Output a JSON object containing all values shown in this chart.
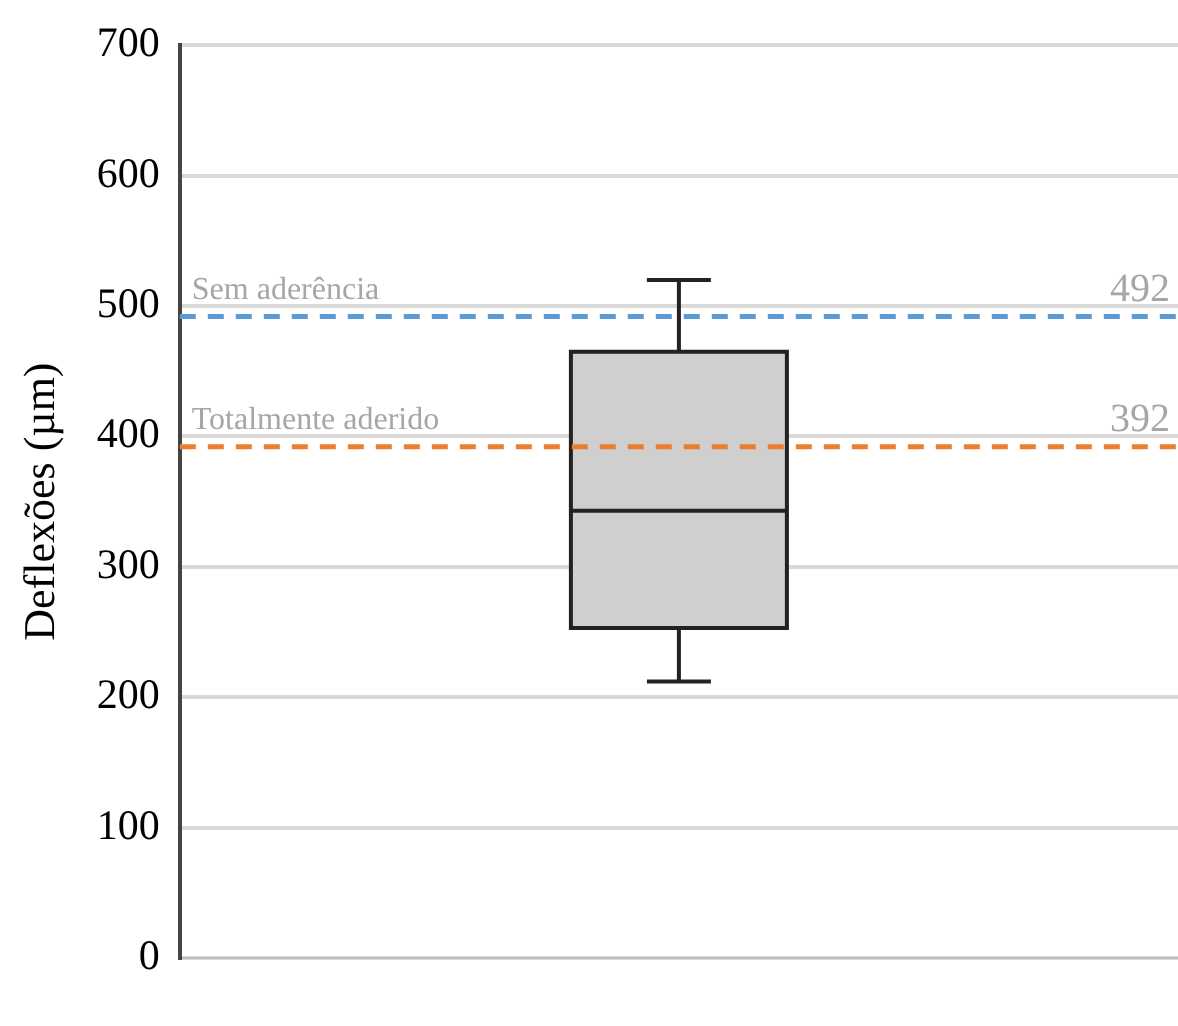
{
  "chart_data": {
    "type": "box",
    "ylabel": "Deflexões (µm)",
    "categories": [
      null
    ],
    "boxes": [
      {
        "low": 212,
        "q1": 253,
        "median": 343,
        "q3": 465,
        "high": 520
      }
    ],
    "color": "#d0cfcf",
    "ylim": [
      0,
      700
    ],
    "yticks": [
      0,
      100,
      200,
      300,
      400,
      500,
      600,
      700
    ],
    "grid": "y",
    "ref_lines": [
      {
        "axis": "y",
        "value": 492,
        "label": "Sem aderência",
        "color": "#5b9bd5",
        "line_style": "dashed"
      },
      {
        "axis": "y",
        "value": 392,
        "label": "Totalmente aderido",
        "color": "#ed7d31",
        "line_style": "dashed"
      }
    ],
    "annotations": [
      {
        "text": "492",
        "y": 492
      },
      {
        "text": "392",
        "y": 392
      }
    ]
  }
}
